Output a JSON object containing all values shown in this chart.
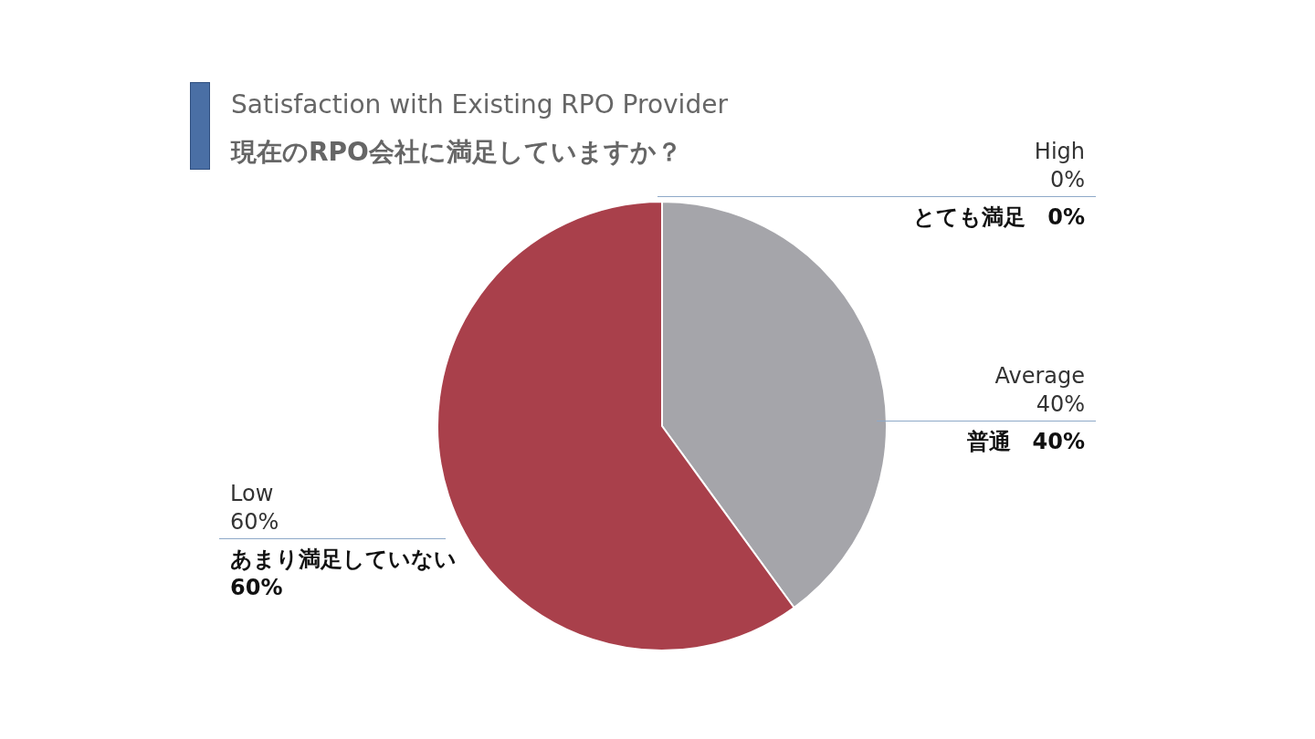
{
  "chart_data": {
    "type": "pie",
    "title": "Satisfaction with Existing RPO Provider",
    "subtitle": "現在のRPO会社に満足していますか？",
    "categories": [
      "High",
      "Average",
      "Low"
    ],
    "values": [
      0,
      40,
      60
    ],
    "value_labels": [
      "0%",
      "40%",
      "60%"
    ],
    "colors": [
      "#4472c4",
      "#a5a5aa",
      "#a9404b"
    ],
    "annotations": [
      "とても満足　0%",
      "普通　40%",
      "あまり満足していない 60%"
    ]
  }
}
